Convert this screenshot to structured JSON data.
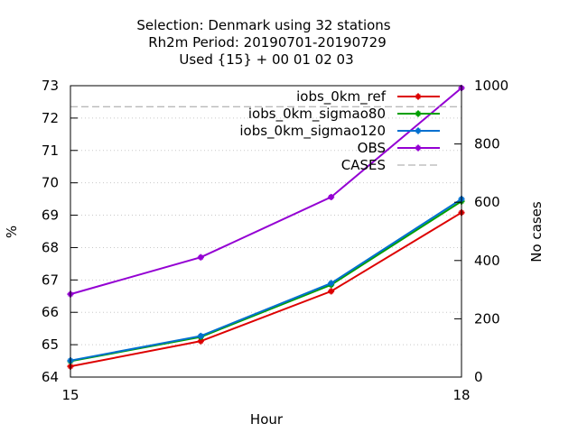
{
  "title_lines": [
    "Selection: Denmark using     32 stations",
    "Rh2m   Period: 20190701-20190729",
    "Used {15} + 00 01 02 03"
  ],
  "chart_data": {
    "type": "line",
    "xlabel": "Hour",
    "ylabel": "%",
    "y2label": "No cases",
    "xlim": [
      15,
      18
    ],
    "ylim": [
      64,
      73
    ],
    "y2lim": [
      0,
      1000
    ],
    "x_ticks": [
      "15",
      "18"
    ],
    "y_ticks": [
      "64",
      "65",
      "66",
      "67",
      "68",
      "69",
      "70",
      "71",
      "72",
      "73"
    ],
    "y2_ticks": [
      "0",
      "200",
      "400",
      "600",
      "800",
      "1000"
    ],
    "grid": true,
    "legend_position": "top-right",
    "x": [
      15,
      16,
      17,
      18
    ],
    "series": [
      {
        "name": "iobs_0km_ref",
        "color": "#dd0000",
        "axis": "y",
        "values": [
          64.33,
          65.11,
          66.65,
          69.08
        ]
      },
      {
        "name": "iobs_0km_sigmao80",
        "color": "#00a000",
        "axis": "y",
        "values": [
          64.49,
          65.24,
          66.85,
          69.43
        ]
      },
      {
        "name": "iobs_0km_sigmao120",
        "color": "#0070d0",
        "axis": "y",
        "values": [
          64.51,
          65.27,
          66.9,
          69.5
        ]
      },
      {
        "name": "OBS",
        "color": "#9400d3",
        "axis": "y",
        "values": [
          66.56,
          67.7,
          69.56,
          72.93
        ]
      },
      {
        "name": "CASES",
        "color": "#a0a0a0",
        "axis": "y2",
        "dashed": true,
        "values": [
          928,
          928,
          928,
          928
        ]
      }
    ]
  }
}
